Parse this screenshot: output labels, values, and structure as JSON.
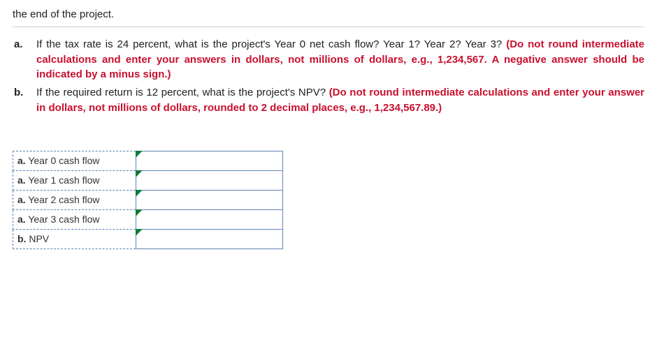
{
  "top_fragment": "the end of the project.",
  "questions": {
    "a": {
      "marker": "a.",
      "plain": "If the tax rate is 24 percent, what is the project's Year 0 net cash flow? Year 1? Year 2? Year 3? ",
      "red": "(Do not round intermediate calculations and enter your answers in dollars, not millions of dollars, e.g., 1,234,567. A negative answer should be indicated by a minus sign.)"
    },
    "b": {
      "marker": "b.",
      "plain": "If the required return is 12 percent, what is the project's NPV? ",
      "red": "(Do not round intermediate calculations and enter your answer in dollars, not millions of dollars, rounded to 2 decimal places, e.g., 1,234,567.89.)"
    }
  },
  "rows": [
    {
      "prefix": "a.",
      "label": " Year 0 cash flow",
      "value": ""
    },
    {
      "prefix": "a.",
      "label": " Year 1 cash flow",
      "value": ""
    },
    {
      "prefix": "a.",
      "label": " Year 2 cash flow",
      "value": ""
    },
    {
      "prefix": "a.",
      "label": " Year 3 cash flow",
      "value": ""
    },
    {
      "prefix": "b.",
      "label": " NPV",
      "value": ""
    }
  ],
  "colors": {
    "instruction_red": "#c8102e",
    "table_border": "#5f84b5",
    "triangle": "#0f7a3d"
  }
}
